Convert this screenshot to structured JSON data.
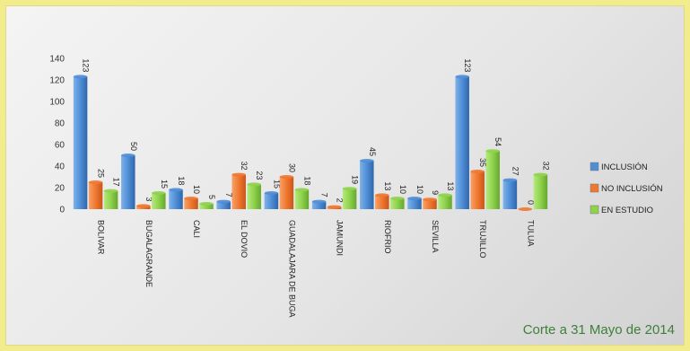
{
  "chart_data": {
    "type": "bar",
    "categories": [
      "BOLIVAR",
      "BUGALAGRANDE",
      "CALI",
      "EL DOVIO",
      "GUADALAJARA DE BUGA",
      "JAMUNDI",
      "RIOFRIO",
      "SEVILLA",
      "TRUJILLO",
      "TULUA"
    ],
    "series": [
      {
        "name": "INCLUSIÓN",
        "values": [
          123,
          50,
          18,
          7,
          15,
          7,
          45,
          10,
          123,
          27
        ],
        "color": "#4f8ed6"
      },
      {
        "name": "NO INCLUSIÓN",
        "values": [
          25,
          3,
          10,
          32,
          30,
          2,
          13,
          9,
          35,
          0
        ],
        "color": "#f0772e"
      },
      {
        "name": "EN ESTUDIO",
        "values": [
          17,
          15,
          5,
          23,
          18,
          19,
          10,
          13,
          54,
          32
        ],
        "color": "#8fd24c"
      }
    ],
    "ylim": [
      0,
      140
    ],
    "yticks": [
      0,
      20,
      40,
      60,
      80,
      100,
      120,
      140
    ],
    "legend_position": "right",
    "grid": false,
    "footnote": "Corte a 31 Mayo de 2014"
  }
}
